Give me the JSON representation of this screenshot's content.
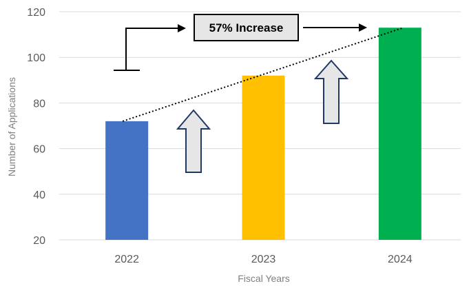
{
  "chart_data": {
    "type": "bar",
    "categories": [
      "2022",
      "2023",
      "2024"
    ],
    "values": [
      72,
      92,
      113
    ],
    "colors": [
      "#4472C4",
      "#FFC000",
      "#00B050"
    ],
    "xlabel": "Fiscal Years",
    "ylabel": "Number of Applications",
    "ylim": [
      20,
      120
    ],
    "yticks": [
      20,
      40,
      60,
      80,
      100,
      120
    ],
    "grid": true,
    "annotation": "57% Increase",
    "trend": "dotted line from the 2022 bar top to the 2024 bar top",
    "up_arrows": [
      "2022 to 2023",
      "2023 to 2024"
    ]
  }
}
